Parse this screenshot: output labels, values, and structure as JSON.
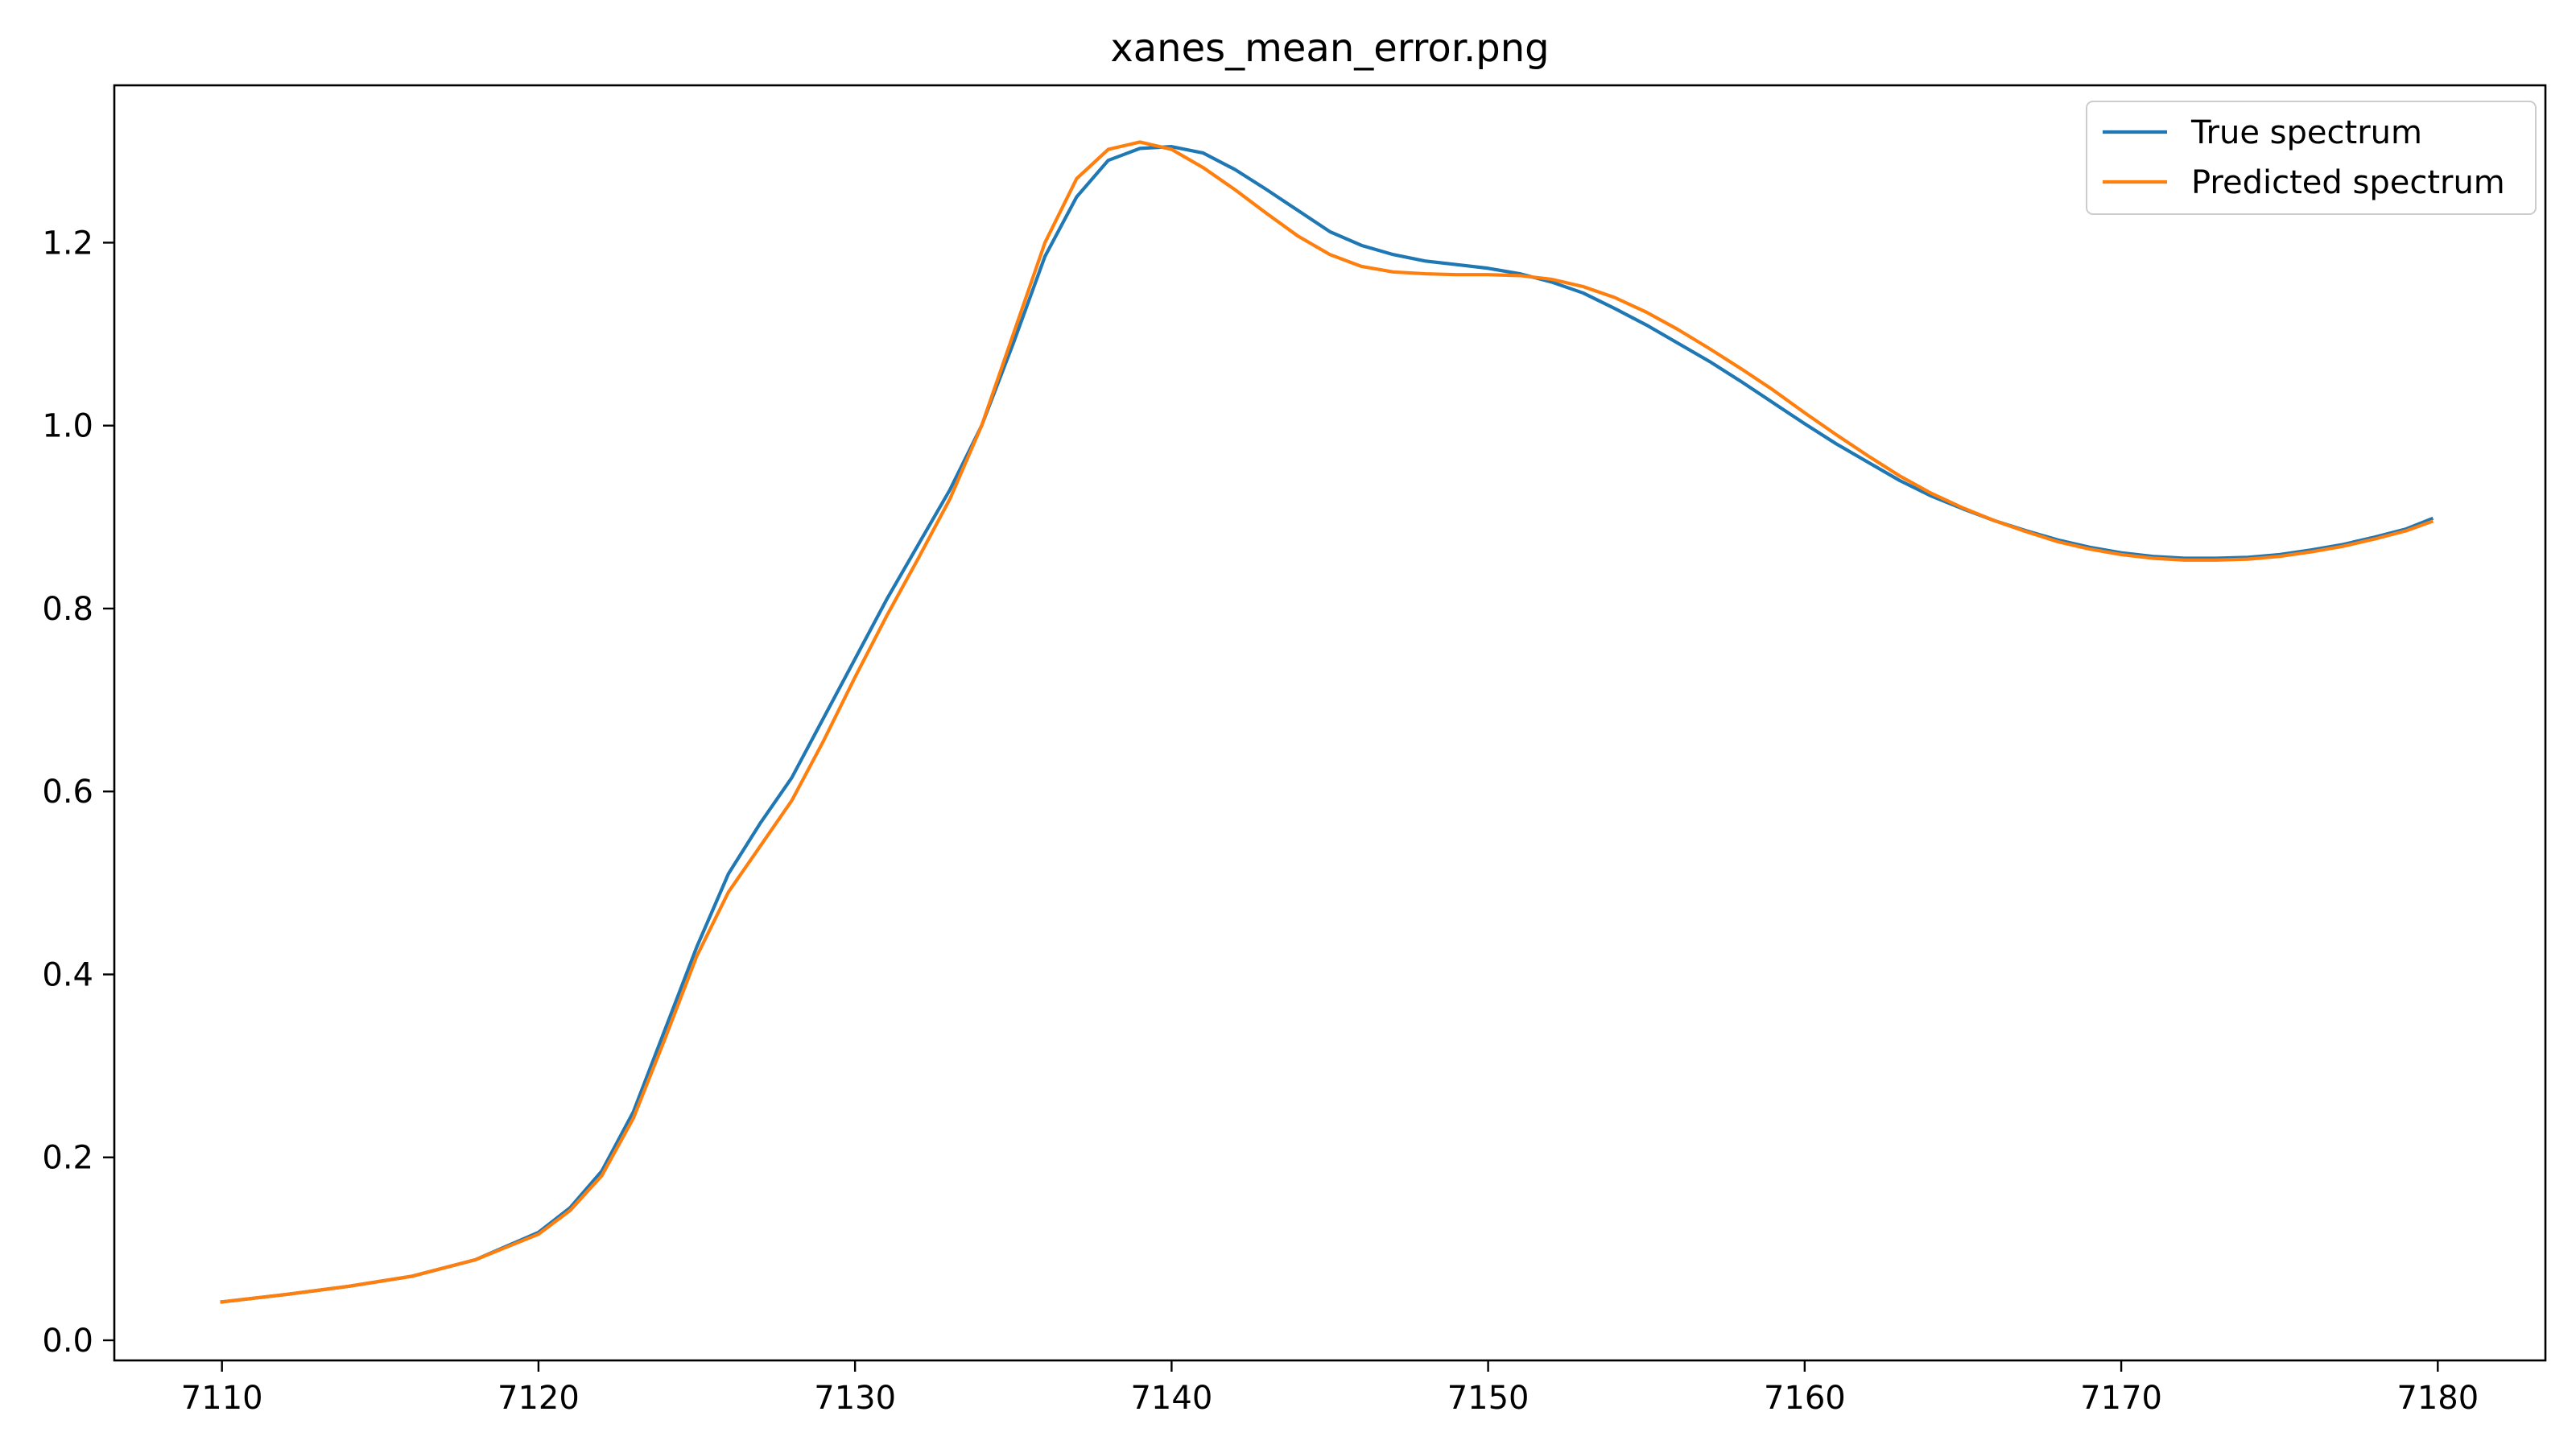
{
  "chart_data": {
    "type": "line",
    "title": "xanes_mean_error.png",
    "xlabel": "",
    "ylabel": "",
    "xlim": [
      7106.6,
      7183.4
    ],
    "ylim": [
      -0.022,
      1.372
    ],
    "x_ticks": [
      7110,
      7120,
      7130,
      7140,
      7150,
      7160,
      7170,
      7180
    ],
    "y_ticks": [
      0.0,
      0.2,
      0.4,
      0.6,
      0.8,
      1.0,
      1.2
    ],
    "x_tick_labels": [
      "7110",
      "7120",
      "7130",
      "7140",
      "7150",
      "7160",
      "7170",
      "7180"
    ],
    "y_tick_labels": [
      "0.0",
      "0.2",
      "0.4",
      "0.6",
      "0.8",
      "1.0",
      "1.2"
    ],
    "grid": false,
    "legend_position": "top-right",
    "series": [
      {
        "name": "True spectrum",
        "color": "#1f77b4",
        "x": [
          7110,
          7112,
          7114,
          7116,
          7118,
          7120,
          7121,
          7122,
          7123,
          7124,
          7125,
          7126,
          7127,
          7128,
          7129,
          7130,
          7131,
          7132,
          7133,
          7134,
          7135,
          7136,
          7137,
          7138,
          7139,
          7140,
          7141,
          7142,
          7143,
          7144,
          7145,
          7146,
          7147,
          7148,
          7149,
          7150,
          7151,
          7152,
          7153,
          7154,
          7155,
          7156,
          7157,
          7158,
          7159,
          7160,
          7161,
          7162,
          7163,
          7164,
          7165,
          7166,
          7167,
          7168,
          7169,
          7170,
          7171,
          7172,
          7173,
          7174,
          7175,
          7176,
          7177,
          7178,
          7179,
          7179.8
        ],
        "y": [
          0.042,
          0.05,
          0.059,
          0.07,
          0.088,
          0.118,
          0.145,
          0.185,
          0.25,
          0.34,
          0.43,
          0.51,
          0.565,
          0.615,
          0.68,
          0.745,
          0.81,
          0.87,
          0.93,
          1.0,
          1.09,
          1.185,
          1.25,
          1.29,
          1.303,
          1.305,
          1.298,
          1.28,
          1.258,
          1.235,
          1.212,
          1.197,
          1.187,
          1.18,
          1.176,
          1.172,
          1.166,
          1.157,
          1.145,
          1.128,
          1.11,
          1.09,
          1.07,
          1.048,
          1.025,
          1.002,
          0.98,
          0.96,
          0.94,
          0.923,
          0.909,
          0.896,
          0.885,
          0.875,
          0.867,
          0.861,
          0.857,
          0.855,
          0.855,
          0.856,
          0.859,
          0.864,
          0.87,
          0.878,
          0.887,
          0.898
        ]
      },
      {
        "name": "Predicted spectrum",
        "color": "#ff7f0e",
        "x": [
          7110,
          7112,
          7114,
          7116,
          7118,
          7120,
          7121,
          7122,
          7123,
          7124,
          7125,
          7126,
          7127,
          7128,
          7129,
          7130,
          7131,
          7132,
          7133,
          7134,
          7135,
          7136,
          7137,
          7138,
          7139,
          7140,
          7141,
          7142,
          7143,
          7144,
          7145,
          7146,
          7147,
          7148,
          7149,
          7150,
          7151,
          7152,
          7153,
          7154,
          7155,
          7156,
          7157,
          7158,
          7159,
          7160,
          7161,
          7162,
          7163,
          7164,
          7165,
          7166,
          7167,
          7168,
          7169,
          7170,
          7171,
          7172,
          7173,
          7174,
          7175,
          7176,
          7177,
          7178,
          7179,
          7179.8
        ],
        "y": [
          0.042,
          0.05,
          0.059,
          0.07,
          0.088,
          0.116,
          0.142,
          0.18,
          0.243,
          0.33,
          0.42,
          0.49,
          0.54,
          0.59,
          0.655,
          0.725,
          0.792,
          0.855,
          0.92,
          1.0,
          1.1,
          1.2,
          1.27,
          1.302,
          1.31,
          1.302,
          1.282,
          1.258,
          1.232,
          1.207,
          1.187,
          1.174,
          1.168,
          1.166,
          1.165,
          1.165,
          1.164,
          1.16,
          1.152,
          1.14,
          1.124,
          1.105,
          1.084,
          1.062,
          1.039,
          1.014,
          0.99,
          0.967,
          0.945,
          0.926,
          0.91,
          0.896,
          0.884,
          0.873,
          0.865,
          0.859,
          0.855,
          0.853,
          0.853,
          0.854,
          0.857,
          0.862,
          0.868,
          0.876,
          0.885,
          0.895
        ]
      }
    ]
  }
}
